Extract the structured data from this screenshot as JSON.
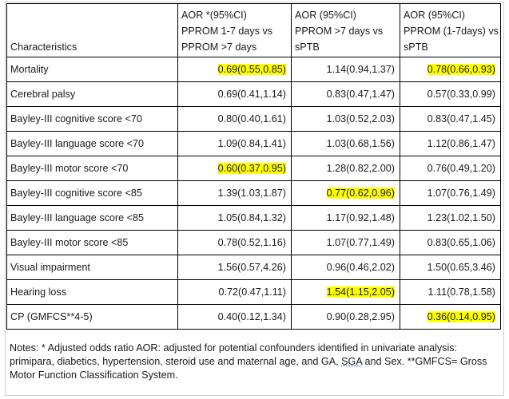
{
  "table": {
    "headers": [
      {
        "lines": [
          "Characteristics"
        ]
      },
      {
        "lines": [
          "AOR *(95%CI)",
          "PPROM 1-7 days vs",
          "PPROM >7 days"
        ]
      },
      {
        "lines": [
          "AOR (95%CI)",
          "PPROM >7 days vs",
          "sPTB"
        ]
      },
      {
        "lines": [
          "AOR (95%CI)",
          "PPROM (1-7days) vs",
          "sPTB"
        ]
      }
    ],
    "rows": [
      {
        "label": "Mortality",
        "cells": [
          {
            "v": "0.69(0.55,0.85)",
            "hl": true
          },
          {
            "v": "1.14(0.94,1.37)",
            "hl": false
          },
          {
            "v": "0.78(0.66,0.93)",
            "hl": true
          }
        ]
      },
      {
        "label": "Cerebral palsy",
        "cells": [
          {
            "v": "0.69(0.41,1.14)",
            "hl": false
          },
          {
            "v": "0.83(0.47,1.47)",
            "hl": false
          },
          {
            "v": "0.57(0.33,0.99)",
            "hl": false
          }
        ]
      },
      {
        "label": "Bayley-III cognitive score <70",
        "cells": [
          {
            "v": "0.80(0.40,1.61)",
            "hl": false
          },
          {
            "v": "1.03(0.52,2.03)",
            "hl": false
          },
          {
            "v": "0.83(0.47,1.45)",
            "hl": false
          }
        ]
      },
      {
        "label": "Bayley-III language score <70",
        "cells": [
          {
            "v": "1.09(0.84,1.41)",
            "hl": false
          },
          {
            "v": "1.03(0.68,1.56)",
            "hl": false
          },
          {
            "v": "1.12(0.86,1.47)",
            "hl": false
          }
        ]
      },
      {
        "label": "Bayley-III motor score <70",
        "cells": [
          {
            "v": "0.60(0.37,0.95)",
            "hl": true
          },
          {
            "v": "1.28(0.82,2.00)",
            "hl": false
          },
          {
            "v": "0.76(0.49,1.20)",
            "hl": false
          }
        ]
      },
      {
        "label": "Bayley-III cognitive score <85",
        "cells": [
          {
            "v": "1.39(1.03,1.87)",
            "hl": false
          },
          {
            "v": "0.77(0.62,0.96)",
            "hl": true
          },
          {
            "v": "1.07(0.76,1.49)",
            "hl": false
          }
        ]
      },
      {
        "label": "Bayley-III language score <85",
        "cells": [
          {
            "v": "1.05(0.84,1.32)",
            "hl": false
          },
          {
            "v": "1.17(0.92,1.48)",
            "hl": false
          },
          {
            "v": "1.23(1.02,1.50)",
            "hl": false
          }
        ]
      },
      {
        "label": "Bayley-III motor score <85",
        "cells": [
          {
            "v": "0.78(0.52,1.16)",
            "hl": false
          },
          {
            "v": "1.07(0.77,1.49)",
            "hl": false
          },
          {
            "v": "0.83(0.65,1.06)",
            "hl": false
          }
        ]
      },
      {
        "label": "Visual impairment",
        "cells": [
          {
            "v": "1.56(0.57,4.26)",
            "hl": false
          },
          {
            "v": "0.96(0.46,2.02)",
            "hl": false
          },
          {
            "v": "1.50(0.65,3.46)",
            "hl": false
          }
        ]
      },
      {
        "label": "Hearing loss",
        "cells": [
          {
            "v": "0.72(0.47,1.11)",
            "hl": false
          },
          {
            "v": "1.54(1.15,2.05)",
            "hl": true
          },
          {
            "v": "1.11(0.78,1.58)",
            "hl": false
          }
        ]
      },
      {
        "label": "CP (GMFCS**4-5)",
        "cells": [
          {
            "v": "0.40(0.12,1.34)",
            "hl": false
          },
          {
            "v": "0.90(0.28,2.95)",
            "hl": false
          },
          {
            "v": "0.36(0.14,0.95)",
            "hl": true
          }
        ]
      }
    ]
  },
  "notes": {
    "before_sga": "Notes: * Adjusted odds ratio AOR: adjusted for potential confounders identified in univariate analysis: primipara, diabetics, hypertension, steroid use and maternal age, and GA, ",
    "sga": "SGA",
    "after_sga": " and Sex. **GMFCS= Gross Motor Function Classification System."
  },
  "colors": {
    "highlight": "#ffff00",
    "border": "#000000"
  }
}
